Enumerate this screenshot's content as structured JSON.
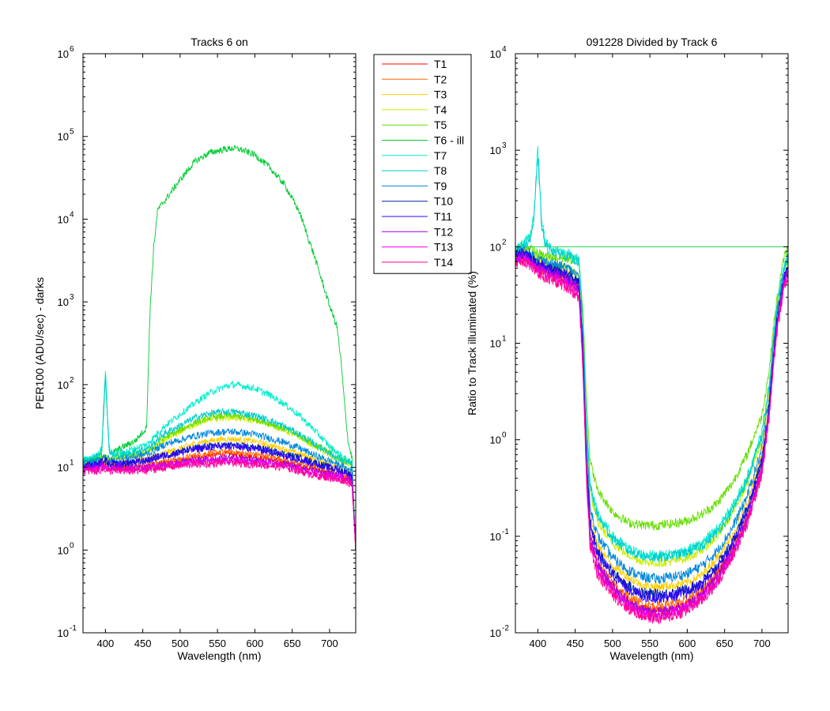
{
  "chart_data": [
    {
      "type": "line",
      "title": "Tracks 6 on",
      "xlabel": "Wavelength (nm)",
      "ylabel": "PER100  (ADU/sec) - darks",
      "xlim": [
        370,
        735
      ],
      "ylim": [
        0.1,
        1000000
      ],
      "yscale": "log",
      "xticks": [
        400,
        450,
        500,
        550,
        600,
        650,
        700
      ],
      "ytick_exponents": [
        -1,
        0,
        1,
        2,
        3,
        4,
        5,
        6
      ],
      "ytick_base": "10",
      "x": [
        370,
        380,
        390,
        395,
        400,
        405,
        410,
        420,
        440,
        455,
        460,
        465,
        470,
        480,
        500,
        520,
        540,
        560,
        570,
        580,
        600,
        620,
        640,
        660,
        680,
        700,
        710,
        715,
        720,
        725,
        730,
        735
      ],
      "series": [
        {
          "name": "T1",
          "color": "#ff0000",
          "values": [
            10,
            10,
            10.5,
            11,
            11,
            10,
            10,
            10,
            10,
            10,
            10.5,
            11,
            11,
            11.5,
            12,
            13,
            14,
            14.5,
            14.5,
            14,
            13.5,
            12.5,
            11.5,
            10.5,
            9.5,
            8.5,
            8,
            8,
            7.5,
            7,
            7,
            1
          ]
        },
        {
          "name": "T2",
          "color": "#ff6600",
          "values": [
            10,
            10,
            10.5,
            11,
            11,
            10,
            10,
            10,
            10.5,
            10.5,
            11,
            11,
            11.5,
            12,
            12.5,
            14,
            15,
            15.5,
            15.5,
            15,
            14.5,
            13.5,
            12.5,
            11,
            10,
            9,
            8.5,
            8,
            8,
            7.5,
            7,
            1
          ]
        },
        {
          "name": "T3",
          "color": "#ffcc00",
          "values": [
            11,
            11,
            11,
            11.5,
            11.5,
            11,
            11,
            11,
            12,
            12.5,
            13,
            13.5,
            14,
            15,
            17,
            19.5,
            21,
            22,
            22,
            21.5,
            20.5,
            18.5,
            16.5,
            14.5,
            12.5,
            11,
            10.5,
            10,
            9.5,
            9,
            9,
            1
          ]
        },
        {
          "name": "T4",
          "color": "#ccee00",
          "values": [
            12,
            12,
            12.5,
            13,
            13,
            12.5,
            12.5,
            13,
            14,
            15,
            16,
            17,
            19,
            22,
            27,
            33,
            38,
            40,
            40,
            39,
            37,
            33,
            28,
            23,
            18,
            14,
            12.5,
            12,
            11.5,
            11,
            10.5,
            1
          ]
        },
        {
          "name": "T5",
          "color": "#66dd00",
          "values": [
            12,
            12,
            12.5,
            13,
            13.5,
            13,
            13,
            13.5,
            14.5,
            15.5,
            16.5,
            17.5,
            20,
            23,
            28,
            35,
            40,
            42,
            42,
            41,
            38,
            34,
            29,
            24,
            19,
            15,
            13,
            12.5,
            12,
            11.5,
            11,
            1
          ]
        },
        {
          "name": "T6 - ill",
          "color": "#00cc33",
          "values": [
            12,
            12,
            13,
            15,
            120,
            16,
            15,
            17,
            21,
            30,
            900,
            5000,
            13000,
            17000,
            30000,
            50000,
            64000,
            70000,
            72000,
            70000,
            60000,
            42000,
            26000,
            12000,
            3500,
            900,
            500,
            200,
            60,
            20,
            13,
            1
          ]
        },
        {
          "name": "T7",
          "color": "#00eecc",
          "values": [
            12,
            13,
            14,
            18,
            150,
            17,
            15,
            15,
            17,
            19,
            21,
            23,
            26,
            32,
            44,
            60,
            80,
            95,
            100,
            98,
            90,
            75,
            58,
            42,
            28,
            18,
            15,
            14,
            13,
            12,
            11,
            1
          ]
        },
        {
          "name": "T8",
          "color": "#00cccc",
          "values": [
            12,
            13,
            14,
            17,
            130,
            16,
            14,
            14,
            15.5,
            17,
            18,
            19.5,
            22,
            26,
            32,
            40,
            45,
            47,
            47,
            46,
            42,
            37,
            31,
            25,
            19,
            15,
            13,
            12.5,
            12,
            11.5,
            11,
            1
          ]
        },
        {
          "name": "T9",
          "color": "#0088dd",
          "values": [
            11,
            11.5,
            12,
            13,
            14,
            12.5,
            12,
            12.5,
            13.5,
            14.5,
            15,
            16,
            17,
            19,
            21.5,
            24,
            26,
            27,
            27,
            26.5,
            25,
            22.5,
            20,
            17,
            14,
            12,
            11,
            10.5,
            10,
            9.5,
            9,
            1
          ]
        },
        {
          "name": "T10",
          "color": "#0022aa",
          "values": [
            10.5,
            10.5,
            11,
            11.5,
            12,
            11,
            11,
            11,
            11.5,
            12,
            12.5,
            13,
            13.5,
            14,
            15.5,
            17,
            18,
            18.5,
            18.5,
            18,
            17.5,
            16,
            14.5,
            13,
            11.5,
            10,
            9.5,
            9,
            9,
            8.5,
            8,
            1
          ]
        },
        {
          "name": "T11",
          "color": "#3300ff",
          "values": [
            10.5,
            10.5,
            11,
            11.5,
            12,
            11,
            11,
            11,
            11.5,
            12,
            12.5,
            13,
            13.5,
            14,
            15,
            16.5,
            17.5,
            18,
            18,
            17.5,
            17,
            15.5,
            14,
            12.5,
            11,
            10,
            9.5,
            9,
            8.5,
            8,
            8,
            1
          ]
        },
        {
          "name": "T12",
          "color": "#9900ee",
          "values": [
            10,
            10,
            10,
            10.5,
            10.5,
            10,
            10,
            10,
            10,
            10,
            10,
            10.5,
            10.5,
            11,
            11.5,
            12,
            12.5,
            13,
            13,
            12.5,
            12,
            11.5,
            11,
            10,
            9,
            8.5,
            8,
            8,
            7.5,
            7,
            7,
            1
          ]
        },
        {
          "name": "T13",
          "color": "#ee00ee",
          "values": [
            9.5,
            9.5,
            9.5,
            10,
            10,
            9.5,
            9.5,
            9.5,
            9.5,
            9.5,
            10,
            10,
            10,
            10.5,
            11,
            11.5,
            12,
            12,
            12,
            12,
            11.5,
            11,
            10.5,
            9.5,
            8.5,
            8,
            7.5,
            7.5,
            7,
            7,
            6.5,
            1
          ]
        },
        {
          "name": "T14",
          "color": "#ff0099",
          "values": [
            9,
            9,
            9,
            9.5,
            9.5,
            9,
            9,
            9,
            9,
            9,
            9.5,
            9.5,
            9.5,
            10,
            10.5,
            11,
            11,
            11.5,
            11.5,
            11,
            11,
            10.5,
            10,
            9,
            8,
            7.5,
            7,
            7,
            7,
            6.5,
            6.5,
            1
          ]
        }
      ]
    },
    {
      "type": "line",
      "title": "091228 Divided by Track 6",
      "xlabel": "Wavelength (nm)",
      "ylabel": "Ratio to Track illuminated (%)",
      "xlim": [
        370,
        735
      ],
      "ylim": [
        0.01,
        10000
      ],
      "yscale": "log",
      "xticks": [
        400,
        450,
        500,
        550,
        600,
        650,
        700
      ],
      "ytick_exponents": [
        -2,
        -1,
        0,
        1,
        2,
        3,
        4
      ],
      "ytick_base": "10",
      "x": [
        370,
        380,
        390,
        395,
        400,
        405,
        410,
        420,
        440,
        455,
        460,
        465,
        470,
        480,
        500,
        520,
        540,
        560,
        580,
        600,
        620,
        640,
        660,
        680,
        700,
        710,
        715,
        720,
        725,
        730,
        735
      ],
      "series": [
        {
          "name": "T1",
          "color": "#ff0000",
          "values": [
            75,
            80,
            70,
            65,
            60,
            58,
            55,
            52,
            45,
            35,
            8,
            0.5,
            0.1,
            0.05,
            0.03,
            0.022,
            0.018,
            0.017,
            0.018,
            0.02,
            0.026,
            0.04,
            0.07,
            0.15,
            0.5,
            2,
            6,
            15,
            25,
            45,
            55
          ]
        },
        {
          "name": "T2",
          "color": "#ff6600",
          "values": [
            78,
            82,
            72,
            68,
            62,
            60,
            57,
            54,
            47,
            37,
            8.5,
            0.55,
            0.11,
            0.055,
            0.033,
            0.024,
            0.02,
            0.019,
            0.02,
            0.022,
            0.028,
            0.043,
            0.075,
            0.16,
            0.55,
            2.2,
            6.5,
            16,
            27,
            47,
            57
          ]
        },
        {
          "name": "T3",
          "color": "#ffcc00",
          "values": [
            82,
            88,
            78,
            72,
            68,
            65,
            62,
            58,
            52,
            42,
            10,
            0.8,
            0.16,
            0.08,
            0.05,
            0.038,
            0.031,
            0.03,
            0.031,
            0.033,
            0.04,
            0.06,
            0.1,
            0.22,
            0.7,
            2.8,
            8,
            19,
            32,
            52,
            62
          ]
        },
        {
          "name": "T4",
          "color": "#ccee00",
          "values": [
            88,
            92,
            85,
            80,
            75,
            72,
            70,
            66,
            60,
            50,
            14,
            1.3,
            0.28,
            0.14,
            0.085,
            0.065,
            0.055,
            0.053,
            0.055,
            0.06,
            0.072,
            0.1,
            0.17,
            0.35,
            1.0,
            3.5,
            10,
            22,
            38,
            60,
            75
          ]
        },
        {
          "name": "T5",
          "color": "#66dd00",
          "values": [
            95,
            100,
            95,
            90,
            85,
            82,
            80,
            78,
            75,
            70,
            25,
            3,
            0.6,
            0.3,
            0.18,
            0.14,
            0.13,
            0.13,
            0.135,
            0.145,
            0.17,
            0.22,
            0.35,
            0.7,
            1.8,
            5.5,
            14,
            28,
            50,
            80,
            100
          ]
        },
        {
          "name": "T6 - ill",
          "color": "#00cc33",
          "values": [
            100,
            100,
            100,
            100,
            100,
            100,
            100,
            100,
            100,
            100,
            100,
            100,
            100,
            100,
            100,
            100,
            100,
            100,
            100,
            100,
            100,
            100,
            100,
            100,
            100,
            100,
            100,
            100,
            100,
            100,
            100
          ]
        },
        {
          "name": "T7",
          "color": "#00eecc",
          "values": [
            95,
            105,
            130,
            220,
            1100,
            200,
            110,
            95,
            85,
            75,
            20,
            1.8,
            0.35,
            0.17,
            0.1,
            0.075,
            0.065,
            0.063,
            0.066,
            0.072,
            0.085,
            0.12,
            0.2,
            0.4,
            1.2,
            4,
            11,
            24,
            42,
            65,
            80
          ]
        },
        {
          "name": "T8",
          "color": "#00cccc",
          "values": [
            92,
            100,
            120,
            190,
            900,
            170,
            100,
            90,
            80,
            70,
            18,
            1.6,
            0.32,
            0.16,
            0.095,
            0.072,
            0.062,
            0.06,
            0.063,
            0.068,
            0.08,
            0.11,
            0.18,
            0.38,
            1.1,
            3.8,
            10,
            23,
            40,
            62,
            78
          ]
        },
        {
          "name": "T9",
          "color": "#0088dd",
          "values": [
            88,
            92,
            85,
            80,
            76,
            72,
            70,
            66,
            60,
            50,
            13,
            1.0,
            0.2,
            0.1,
            0.06,
            0.045,
            0.038,
            0.036,
            0.038,
            0.041,
            0.05,
            0.07,
            0.12,
            0.26,
            0.8,
            3,
            8.5,
            20,
            34,
            55,
            68
          ]
        },
        {
          "name": "T10",
          "color": "#0022aa",
          "values": [
            82,
            86,
            78,
            72,
            68,
            65,
            62,
            58,
            52,
            42,
            10,
            0.7,
            0.14,
            0.07,
            0.042,
            0.031,
            0.026,
            0.025,
            0.026,
            0.028,
            0.034,
            0.05,
            0.085,
            0.19,
            0.6,
            2.4,
            7,
            17,
            29,
            49,
            60
          ]
        },
        {
          "name": "T11",
          "color": "#3300ff",
          "values": [
            80,
            84,
            76,
            70,
            66,
            63,
            60,
            56,
            50,
            40,
            9.5,
            0.65,
            0.13,
            0.065,
            0.04,
            0.029,
            0.024,
            0.023,
            0.024,
            0.026,
            0.032,
            0.047,
            0.08,
            0.18,
            0.58,
            2.3,
            6.8,
            16.5,
            28,
            48,
            58
          ]
        },
        {
          "name": "T12",
          "color": "#9900ee",
          "values": [
            76,
            80,
            72,
            66,
            62,
            59,
            56,
            53,
            46,
            36,
            8,
            0.5,
            0.1,
            0.05,
            0.03,
            0.021,
            0.017,
            0.016,
            0.017,
            0.019,
            0.025,
            0.038,
            0.068,
            0.15,
            0.5,
            2,
            6,
            15,
            25,
            45,
            55
          ]
        },
        {
          "name": "T13",
          "color": "#ee00ee",
          "values": [
            72,
            76,
            68,
            62,
            58,
            55,
            52,
            49,
            42,
            33,
            7,
            0.45,
            0.09,
            0.045,
            0.027,
            0.019,
            0.016,
            0.015,
            0.016,
            0.018,
            0.023,
            0.035,
            0.063,
            0.14,
            0.47,
            1.9,
            5.7,
            14,
            24,
            43,
            52
          ]
        },
        {
          "name": "T14",
          "color": "#ff0099",
          "values": [
            68,
            72,
            64,
            58,
            54,
            51,
            48,
            45,
            38,
            30,
            6.5,
            0.4,
            0.08,
            0.04,
            0.025,
            0.018,
            0.015,
            0.014,
            0.015,
            0.017,
            0.022,
            0.033,
            0.06,
            0.13,
            0.45,
            1.8,
            5.5,
            13,
            23,
            42,
            50
          ]
        }
      ]
    }
  ]
}
